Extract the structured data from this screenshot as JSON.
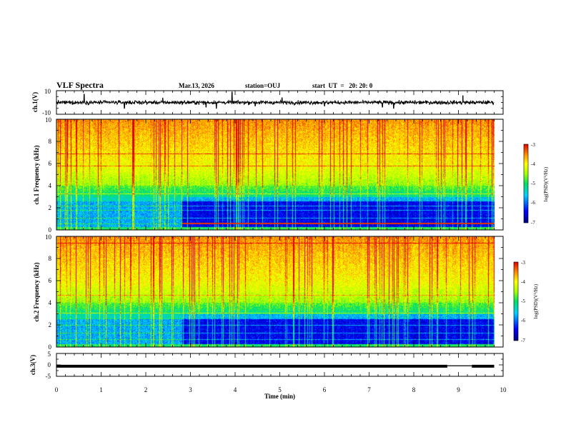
{
  "header": {
    "title": "VLF Spectra",
    "date": "Mar.13, 2026",
    "station": "station=OUJ",
    "start": "start  UT  =   20: 20: 0"
  },
  "chart_data": [
    {
      "type": "line",
      "panel": "ch1_waveform",
      "ylabel": "ch.1(V)",
      "ylim": [
        -10,
        10
      ],
      "yticks": [
        "10",
        "-10"
      ],
      "xlim": [
        0,
        10
      ],
      "baseline": 0,
      "noise_band": 1.5,
      "spikes": [
        {
          "x": 0.62,
          "y": 7
        },
        {
          "x": 1.52,
          "y": -5
        },
        {
          "x": 2.38,
          "y": 4
        },
        {
          "x": 3.35,
          "y": -4
        },
        {
          "x": 3.58,
          "y": -5
        },
        {
          "x": 3.93,
          "y": 9
        },
        {
          "x": 4.45,
          "y": -3
        },
        {
          "x": 5.05,
          "y": 4
        },
        {
          "x": 6.0,
          "y": -3
        },
        {
          "x": 7.3,
          "y": -4
        },
        {
          "x": 7.55,
          "y": -5
        },
        {
          "x": 9.1,
          "y": 6
        }
      ]
    },
    {
      "type": "heatmap",
      "panel": "ch1_spectrogram",
      "ylabel": "ch.1 Frequency  (kHz)",
      "ylim": [
        0,
        10
      ],
      "yticks": [
        "0",
        "2",
        "4",
        "6",
        "8",
        "10"
      ],
      "xlim": [
        0,
        10
      ],
      "data_end_x": 9.8,
      "transition_x": 2.8,
      "colorbar": {
        "label": "log(PSD)(V²/Hz)",
        "min": -7,
        "max": -3,
        "ticks": [
          "-3",
          "-4",
          "-5",
          "-6",
          "-7"
        ]
      }
    },
    {
      "type": "heatmap",
      "panel": "ch2_spectrogram",
      "ylabel": "ch.2 Frequency  (kHz)",
      "ylim": [
        0,
        10
      ],
      "yticks": [
        "0",
        "2",
        "4",
        "6",
        "8",
        "10"
      ],
      "xlim": [
        0,
        10
      ],
      "data_end_x": 9.8,
      "transition_x": 2.8,
      "colorbar": {
        "label": "log(PSD)(V²/Hz)",
        "min": -7,
        "max": -3,
        "ticks": [
          "-3",
          "-4",
          "-5",
          "-6",
          "-7"
        ]
      }
    },
    {
      "type": "line",
      "panel": "ch3_waveform",
      "ylabel": "ch.3(V)",
      "ylim": [
        -5,
        5
      ],
      "yticks": [
        "5",
        "0",
        "-5"
      ],
      "xlim": [
        0,
        10
      ],
      "segments": [
        {
          "x0": 0,
          "x1": 8.75,
          "y": -0.6
        },
        {
          "x0": 8.75,
          "x1": 9.3,
          "y": -0.4
        },
        {
          "x0": 9.3,
          "x1": 9.8,
          "y": -0.6
        }
      ],
      "xlabel": "Time  (min)",
      "xticks": [
        "0",
        "1",
        "2",
        "3",
        "4",
        "5",
        "6",
        "7",
        "8",
        "9",
        "10"
      ]
    }
  ]
}
